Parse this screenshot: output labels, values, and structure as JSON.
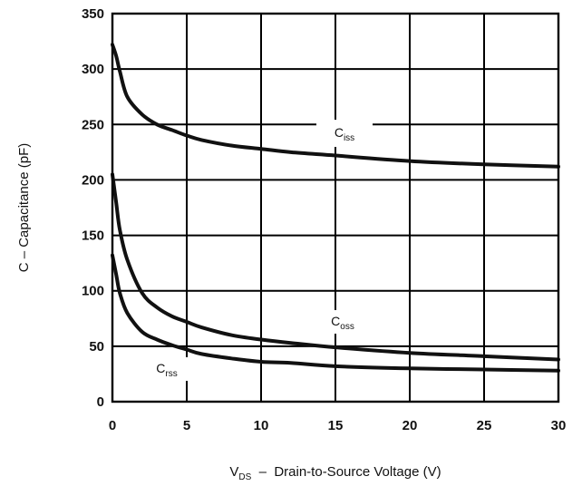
{
  "chart_data": {
    "type": "line",
    "xlabel": {
      "main": "V",
      "sub": "DS",
      "rest": "  –  Drain-to-Source Voltage (V)"
    },
    "ylabel": "C  –  Capacitance (pF)",
    "xlim": [
      0,
      30
    ],
    "ylim": [
      0,
      350
    ],
    "x_ticks": [
      0,
      5,
      10,
      15,
      20,
      25,
      30
    ],
    "y_ticks": [
      0,
      50,
      100,
      150,
      200,
      250,
      300,
      350
    ],
    "grid": true,
    "series": [
      {
        "name": "Ciss",
        "label_main": "C",
        "label_sub": "iss",
        "x": [
          0,
          0.25,
          0.5,
          1,
          2,
          3,
          4,
          5,
          6,
          8,
          10,
          12,
          15,
          20,
          25,
          30
        ],
        "y": [
          322,
          312,
          298,
          275,
          259,
          250,
          245,
          240,
          236,
          231,
          228,
          225,
          222,
          217,
          214,
          212
        ]
      },
      {
        "name": "Coss",
        "label_main": "C",
        "label_sub": "oss",
        "x": [
          0,
          0.25,
          0.5,
          1,
          2,
          3,
          4,
          5,
          6,
          8,
          10,
          12,
          15,
          20,
          25,
          30
        ],
        "y": [
          205,
          180,
          155,
          128,
          98,
          85,
          77,
          72,
          67,
          60,
          56,
          53,
          49,
          44,
          41,
          38
        ]
      },
      {
        "name": "Crss",
        "label_main": "C",
        "label_sub": "rss",
        "x": [
          0,
          0.25,
          0.5,
          1,
          2,
          3,
          4,
          5,
          6,
          8,
          10,
          12,
          15,
          20,
          25,
          30
        ],
        "y": [
          132,
          115,
          98,
          80,
          63,
          56,
          51,
          47,
          43,
          39,
          36,
          35,
          32,
          30,
          29,
          28
        ]
      }
    ]
  }
}
